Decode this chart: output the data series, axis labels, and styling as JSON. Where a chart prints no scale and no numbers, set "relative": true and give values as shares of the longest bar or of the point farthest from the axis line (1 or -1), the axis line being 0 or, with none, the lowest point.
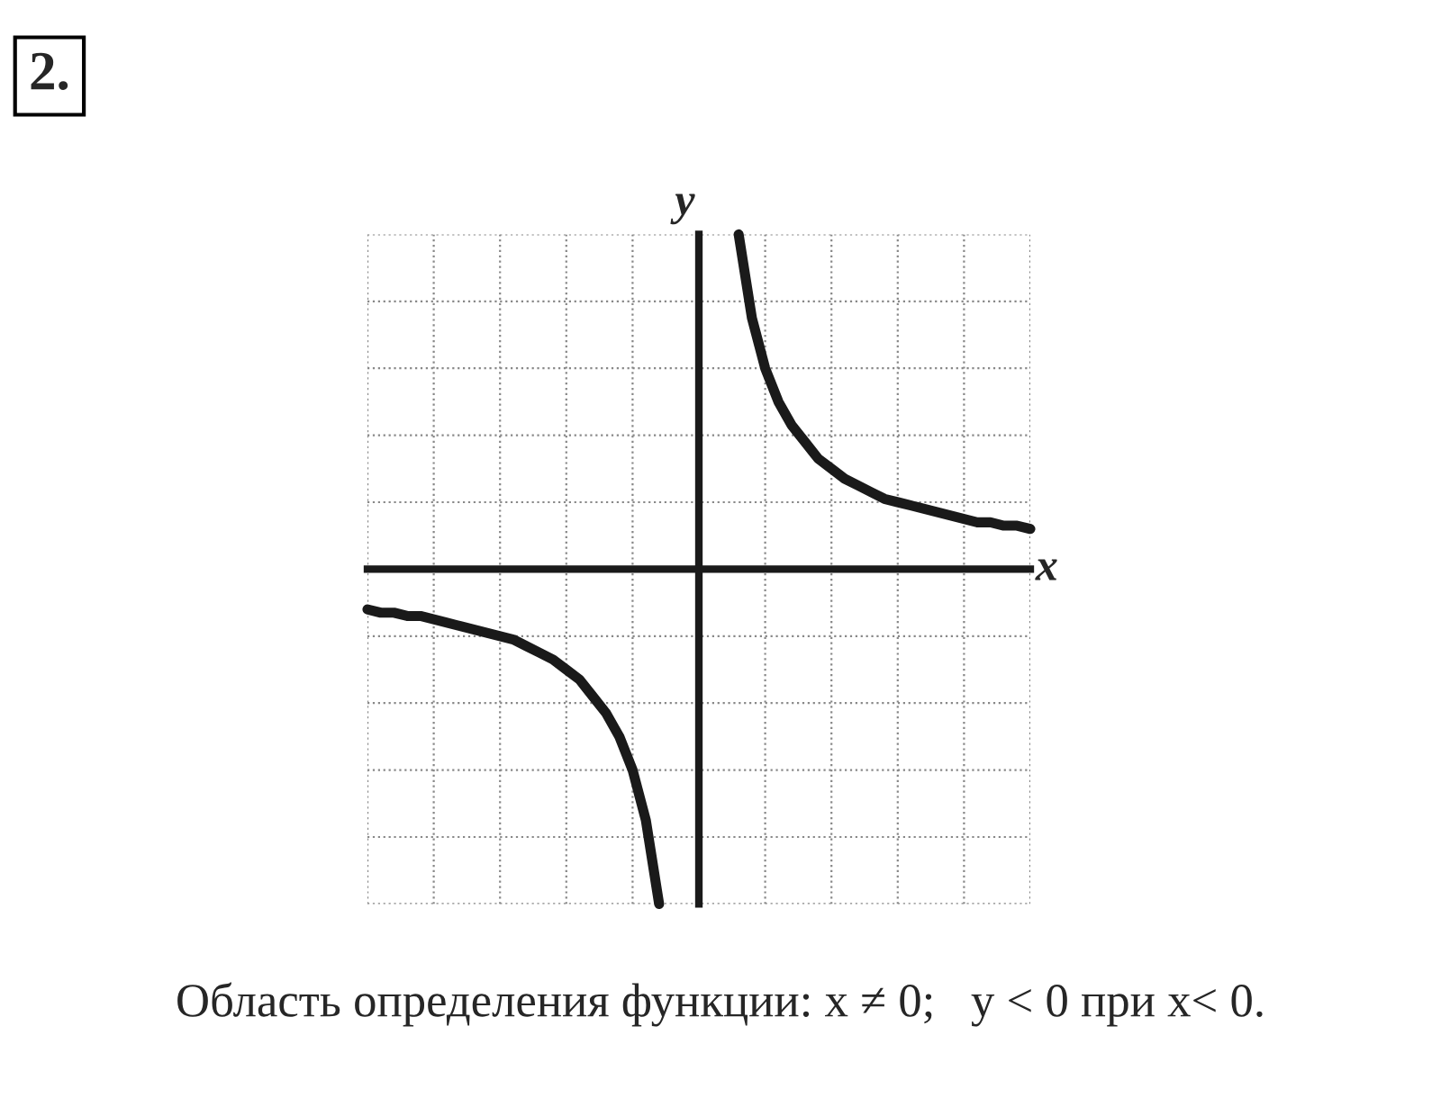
{
  "chart_data": {
    "type": "line",
    "title": "2.",
    "xlabel": "x",
    "ylabel": "y",
    "relative": true,
    "grid": true,
    "categories": [
      null,
      null,
      null,
      null,
      null,
      null,
      null,
      null,
      null,
      null,
      null,
      null,
      null,
      null,
      null,
      null,
      null,
      null,
      null,
      null,
      null,
      null,
      null,
      null,
      null,
      null,
      null,
      null,
      null,
      null,
      null,
      null,
      null,
      null,
      null,
      null,
      null,
      null,
      null,
      null,
      null,
      null,
      null,
      null,
      null,
      null,
      null,
      null,
      null,
      null,
      null
    ],
    "series": [
      {
        "color": "#1a1a1a",
        "values": [
          -0.12,
          -0.13,
          -0.13,
          -0.14,
          -0.14,
          -0.15,
          -0.16,
          -0.17,
          -0.18,
          -0.19,
          -0.2,
          -0.21,
          -0.23,
          -0.25,
          -0.27,
          -0.3,
          -0.33,
          -0.38,
          -0.43,
          -0.5,
          -0.6,
          -0.75,
          -1,
          null,
          null,
          null,
          null,
          null,
          1,
          0.75,
          0.6,
          0.5,
          0.43,
          0.38,
          0.33,
          0.3,
          0.27,
          0.25,
          0.23,
          0.21,
          0.2,
          0.19,
          0.18,
          0.17,
          0.16,
          0.15,
          0.14,
          0.14,
          0.13,
          0.13,
          0.12
        ]
      }
    ],
    "annotations": [
      "Область определения функции: x ≠ 0;   y < 0 при x< 0."
    ]
  }
}
